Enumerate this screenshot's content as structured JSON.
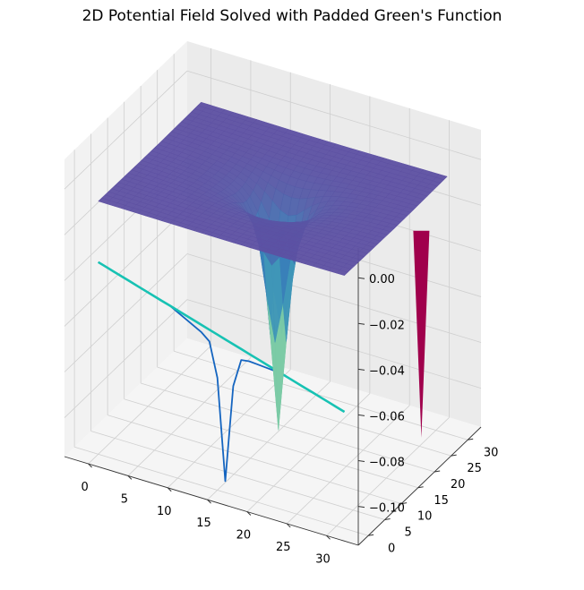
{
  "chart_data": {
    "type": "surface3d",
    "title": "2D Potential Field Solved with Padded Green's Function",
    "xlabel": "",
    "ylabel": "",
    "zlabel": "",
    "x_ticks": [
      0,
      5,
      10,
      15,
      20,
      25,
      30
    ],
    "y_ticks": [
      0,
      5,
      10,
      15,
      20,
      25,
      30
    ],
    "z_ticks": [
      0.0,
      -0.02,
      -0.04,
      -0.06,
      -0.08,
      -0.1
    ],
    "x_tick_labels": [
      "0",
      "5",
      "10",
      "15",
      "20",
      "25",
      "30"
    ],
    "y_tick_labels": [
      "0",
      "5",
      "10",
      "15",
      "20",
      "25",
      "30"
    ],
    "z_tick_labels": [
      "0.00",
      "−0.02",
      "−0.04",
      "−0.06",
      "−0.08",
      "−0.10"
    ],
    "xlim": [
      -3,
      34
    ],
    "ylim": [
      -3,
      34
    ],
    "zlim": [
      -0.117,
      0.013
    ],
    "grid": true,
    "colormap": "Spectral",
    "surface": {
      "grid_size": 32,
      "min_value": -0.112,
      "min_location": [
        16,
        16
      ],
      "plateau_value": -0.006
    },
    "wall_spike": {
      "color": "#a0004c",
      "bottom_value": -0.0965
    },
    "line_series": [
      {
        "color": "#1565c0",
        "style": "dip",
        "start_value": -0.033,
        "end_value": -0.066,
        "min_value": -0.112,
        "min_x": 16
      },
      {
        "color": "#17c2b3",
        "style": "straight",
        "start_value": -0.033,
        "end_value": -0.066
      }
    ]
  }
}
